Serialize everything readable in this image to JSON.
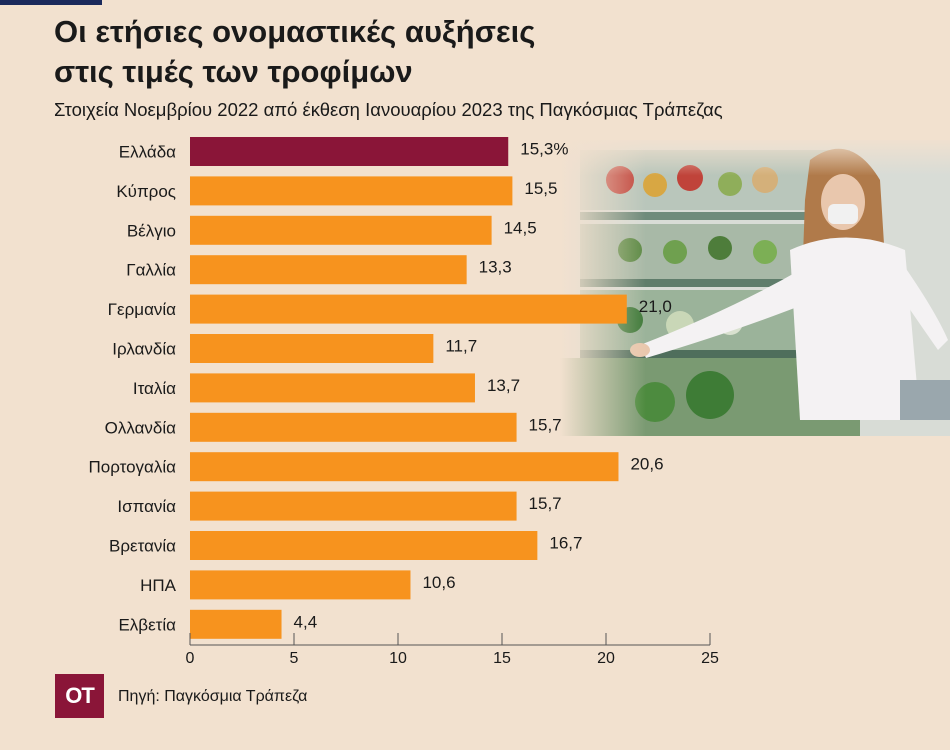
{
  "header": {
    "title_line1": "Οι ετήσιες ονομαστικές αυξήσεις",
    "title_line2": "στις τιμές των τροφίμων",
    "subtitle": "Στοιχεία Νοεμβρίου 2022 από έκθεση Ιανουαρίου 2023 της Παγκόσμιας Τράπεζας"
  },
  "footer": {
    "logo_text": "OT",
    "source": "Πηγή: Παγκόσμια Τράπεζα"
  },
  "colors": {
    "highlight_bar": "#8a1538",
    "bar": "#f7931e",
    "background": "#f2e1cf"
  },
  "chart_data": {
    "type": "bar",
    "orientation": "horizontal",
    "categories": [
      "Ελλάδα",
      "Κύπρος",
      "Βέλγιο",
      "Γαλλία",
      "Γερμανία",
      "Ιρλανδία",
      "Ιταλία",
      "Ολλανδία",
      "Πορτογαλία",
      "Ισπανία",
      "Βρετανία",
      "ΗΠΑ",
      "Ελβετία"
    ],
    "values": [
      15.3,
      15.5,
      14.5,
      13.3,
      21.0,
      11.7,
      13.7,
      15.7,
      20.6,
      15.7,
      16.7,
      10.6,
      4.4
    ],
    "value_labels": [
      "15,3%",
      "15,5",
      "14,5",
      "13,3",
      "21,0",
      "11,7",
      "13,7",
      "15,7",
      "20,6",
      "15,7",
      "16,7",
      "10,6",
      "4,4"
    ],
    "highlight_index": 0,
    "xlim": [
      0,
      25
    ],
    "xticks": [
      0,
      5,
      10,
      15,
      20,
      25
    ],
    "grid": false
  }
}
